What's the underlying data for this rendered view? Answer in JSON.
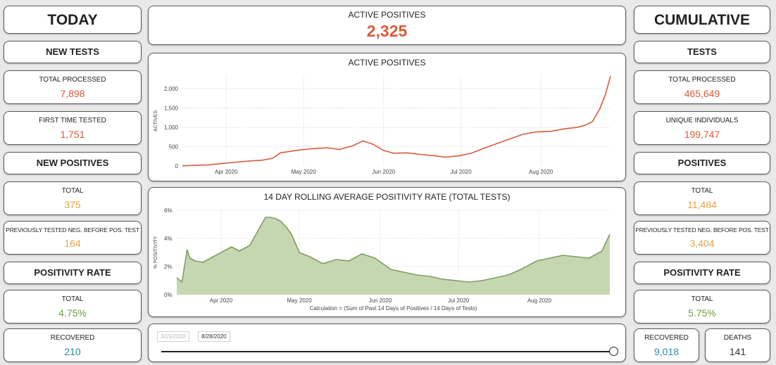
{
  "left": {
    "title": "TODAY",
    "new_tests": {
      "heading": "NEW TESTS",
      "total_processed_label": "TOTAL PROCESSED",
      "total_processed_value": "7,898",
      "first_time_label": "FIRST TIME TESTED",
      "first_time_value": "1,751"
    },
    "new_positives": {
      "heading": "NEW POSITIVES",
      "total_label": "TOTAL",
      "total_value": "375",
      "prev_label": "PREVIOUSLY TESTED NEG. BEFORE POS. TEST",
      "prev_value": "164"
    },
    "positivity": {
      "heading": "POSITIVITY RATE",
      "total_label": "TOTAL",
      "total_value": "4.75%"
    },
    "recovered": {
      "label": "RECOVERED",
      "value": "210"
    }
  },
  "right": {
    "title": "CUMULATIVE",
    "tests": {
      "heading": "TESTS",
      "total_processed_label": "TOTAL PROCESSED",
      "total_processed_value": "465,649",
      "unique_label": "UNIQUE INDIVIDUALS",
      "unique_value": "199,747"
    },
    "positives": {
      "heading": "POSITIVES",
      "total_label": "TOTAL",
      "total_value": "11,484",
      "prev_label": "PREVIOUSLY TESTED NEG. BEFORE POS. TEST",
      "prev_value": "3,404"
    },
    "positivity": {
      "heading": "POSITIVITY RATE",
      "total_label": "TOTAL",
      "total_value": "5.75%"
    },
    "recovered": {
      "label": "RECOVERED",
      "value": "9,018"
    },
    "deaths": {
      "label": "DEATHS",
      "value": "141"
    }
  },
  "center": {
    "kpi": {
      "label": "ACTIVE POSITIVES",
      "value": "2,325"
    },
    "slider": {
      "start_date": "3/15/2020",
      "end_date": "8/28/2020"
    }
  },
  "colors": {
    "accent_red": "#d95b3a",
    "accent_orange": "#e8a23a",
    "accent_green": "#6f9a3f",
    "accent_teal": "#2b8aa3",
    "area_fill": "#c5d7b0",
    "area_stroke": "#7f9d62"
  },
  "chart_data": [
    {
      "type": "line",
      "title": "ACTIVE POSITIVES",
      "ylabel": "ACTIVES",
      "xlabel": "",
      "ylim": [
        0,
        2330
      ],
      "yticks": [
        0,
        500,
        1000,
        1500,
        2000
      ],
      "ytick_labels": [
        "0",
        "500",
        "1,000",
        "1,500",
        "2,000"
      ],
      "xticks": [
        {
          "x": "2020-04-01",
          "label": "Apr 2020"
        },
        {
          "x": "2020-05-01",
          "label": "May 2020"
        },
        {
          "x": "2020-06-01",
          "label": "Jun 2020"
        },
        {
          "x": "2020-07-01",
          "label": "Jul 2020"
        },
        {
          "x": "2020-08-01",
          "label": "Aug 2020"
        }
      ],
      "grid": true,
      "x": [
        "2020-03-15",
        "2020-03-20",
        "2020-03-25",
        "2020-03-30",
        "2020-04-05",
        "2020-04-10",
        "2020-04-15",
        "2020-04-19",
        "2020-04-22",
        "2020-04-25",
        "2020-04-30",
        "2020-05-05",
        "2020-05-10",
        "2020-05-15",
        "2020-05-20",
        "2020-05-24",
        "2020-05-28",
        "2020-06-01",
        "2020-06-05",
        "2020-06-10",
        "2020-06-15",
        "2020-06-20",
        "2020-06-25",
        "2020-06-30",
        "2020-07-05",
        "2020-07-10",
        "2020-07-15",
        "2020-07-20",
        "2020-07-25",
        "2020-07-30",
        "2020-08-05",
        "2020-08-10",
        "2020-08-15",
        "2020-08-18",
        "2020-08-21",
        "2020-08-24",
        "2020-08-26",
        "2020-08-28"
      ],
      "series": [
        {
          "values": [
            5,
            15,
            30,
            60,
            100,
            130,
            150,
            200,
            340,
            370,
            420,
            450,
            470,
            430,
            520,
            650,
            560,
            400,
            330,
            340,
            300,
            270,
            230,
            260,
            330,
            460,
            580,
            700,
            820,
            880,
            900,
            960,
            1000,
            1050,
            1150,
            1500,
            1850,
            2325
          ],
          "color": "#d95b3a"
        }
      ]
    },
    {
      "type": "area",
      "title": "14 DAY ROLLING AVERAGE POSITIVITY RATE (TOTAL TESTS)",
      "ylabel": "% POSITIVITY",
      "xlabel": "Calculation = (Sum of Past 14 Days of Positives / 14 Days of Tests)",
      "ylim": [
        0,
        6
      ],
      "yticks": [
        0,
        2,
        4,
        6
      ],
      "ytick_labels": [
        "0%",
        "2%",
        "4%",
        "6%"
      ],
      "xticks": [
        {
          "x": "2020-04-01",
          "label": "Apr 2020"
        },
        {
          "x": "2020-05-01",
          "label": "May 2020"
        },
        {
          "x": "2020-06-01",
          "label": "Jun 2020"
        },
        {
          "x": "2020-07-01",
          "label": "Jul 2020"
        },
        {
          "x": "2020-08-01",
          "label": "Aug 2020"
        }
      ],
      "grid": true,
      "x": [
        "2020-03-15",
        "2020-03-17",
        "2020-03-19",
        "2020-03-20",
        "2020-03-22",
        "2020-03-25",
        "2020-03-29",
        "2020-04-01",
        "2020-04-05",
        "2020-04-08",
        "2020-04-12",
        "2020-04-15",
        "2020-04-18",
        "2020-04-20",
        "2020-04-22",
        "2020-04-24",
        "2020-04-26",
        "2020-04-28",
        "2020-05-01",
        "2020-05-05",
        "2020-05-10",
        "2020-05-15",
        "2020-05-20",
        "2020-05-25",
        "2020-05-30",
        "2020-06-05",
        "2020-06-10",
        "2020-06-15",
        "2020-06-20",
        "2020-06-25",
        "2020-06-30",
        "2020-07-05",
        "2020-07-10",
        "2020-07-15",
        "2020-07-20",
        "2020-07-25",
        "2020-07-31",
        "2020-08-05",
        "2020-08-10",
        "2020-08-15",
        "2020-08-20",
        "2020-08-25",
        "2020-08-28"
      ],
      "series": [
        {
          "values": [
            1.2,
            0.9,
            3.2,
            2.6,
            2.4,
            2.3,
            2.7,
            3.0,
            3.4,
            3.1,
            3.5,
            4.5,
            5.5,
            5.5,
            5.4,
            5.2,
            4.8,
            4.3,
            3.0,
            2.7,
            2.2,
            2.5,
            2.4,
            2.9,
            2.6,
            1.8,
            1.6,
            1.4,
            1.3,
            1.1,
            1.0,
            0.9,
            1.0,
            1.2,
            1.4,
            1.8,
            2.4,
            2.6,
            2.8,
            2.7,
            2.6,
            3.1,
            4.3
          ],
          "color": "#7f9d62"
        }
      ]
    }
  ]
}
